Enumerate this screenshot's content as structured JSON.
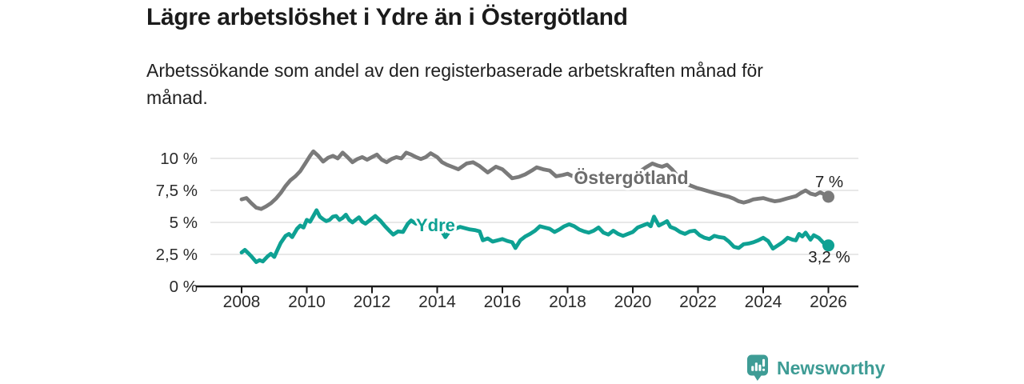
{
  "header": {
    "title": "Lägre arbetslöshet i Ydre än i Östergötland",
    "subtitle": "Arbetssökande som andel av den registerbaserade arbetskraften månad för månad."
  },
  "branding": {
    "name": "Newsworthy",
    "icon": "newsworthy-bar-chart-speech-bubble-icon",
    "color": "#3E9C95"
  },
  "colors": {
    "background": "#ffffff",
    "title_text": "#1b1b1b",
    "body_text": "#212121",
    "axis_text": "#2b2b2b",
    "gridline": "#d9d9d9",
    "axis_line": "#1a1a1a",
    "end_label_text": "#1f1f1f"
  },
  "chart_data": {
    "type": "line",
    "title": "Lägre arbetslöshet i Ydre än i Österg��tland",
    "subtitle": "Arbetssökande som andel av den registerbaserade arbetskraften månad för månad.",
    "unit": "%",
    "grid": "horizontal-only",
    "legend_position": "inline-labels-on-lines",
    "x_axis": {
      "range_years": [
        2007.05,
        2026.95
      ],
      "ticks": [
        {
          "value": 2008,
          "label": "2008"
        },
        {
          "value": 2010,
          "label": "2010"
        },
        {
          "value": 2012,
          "label": "2012"
        },
        {
          "value": 2014,
          "label": "2014"
        },
        {
          "value": 2016,
          "label": "2016"
        },
        {
          "value": 2018,
          "label": "2018"
        },
        {
          "value": 2020,
          "label": "2020"
        },
        {
          "value": 2022,
          "label": "2022"
        },
        {
          "value": 2024,
          "label": "2024"
        },
        {
          "value": 2026,
          "label": "2026"
        }
      ]
    },
    "y_axis": {
      "range": [
        0,
        11.2
      ],
      "ticks": [
        {
          "value": 0,
          "label": "0 %"
        },
        {
          "value": 2.5,
          "label": "2,5 %"
        },
        {
          "value": 5,
          "label": "5 %"
        },
        {
          "value": 7.5,
          "label": "7,5 %"
        },
        {
          "value": 10,
          "label": "10 %"
        }
      ]
    },
    "series": [
      {
        "name": "Östergötland",
        "color": "#7a7a7a",
        "label_color": "#6c6c6c",
        "label_size": 23,
        "label_anchor": {
          "x": 2019.95,
          "y": 8.5
        },
        "end_value": 7.0,
        "end_label": "7 %",
        "end_label_position": "above",
        "points": [
          [
            2008.0,
            6.8
          ],
          [
            2008.15,
            6.9
          ],
          [
            2008.3,
            6.5
          ],
          [
            2008.45,
            6.15
          ],
          [
            2008.6,
            6.05
          ],
          [
            2008.75,
            6.25
          ],
          [
            2008.9,
            6.5
          ],
          [
            2009.05,
            6.85
          ],
          [
            2009.2,
            7.3
          ],
          [
            2009.35,
            7.85
          ],
          [
            2009.5,
            8.3
          ],
          [
            2009.65,
            8.6
          ],
          [
            2009.8,
            9.0
          ],
          [
            2009.95,
            9.6
          ],
          [
            2010.1,
            10.2
          ],
          [
            2010.2,
            10.55
          ],
          [
            2010.35,
            10.2
          ],
          [
            2010.5,
            9.75
          ],
          [
            2010.65,
            10.05
          ],
          [
            2010.8,
            10.2
          ],
          [
            2010.95,
            10.0
          ],
          [
            2011.1,
            10.45
          ],
          [
            2011.25,
            10.1
          ],
          [
            2011.4,
            9.7
          ],
          [
            2011.55,
            9.95
          ],
          [
            2011.7,
            10.1
          ],
          [
            2011.85,
            9.9
          ],
          [
            2012.0,
            10.1
          ],
          [
            2012.15,
            10.3
          ],
          [
            2012.3,
            9.9
          ],
          [
            2012.45,
            9.7
          ],
          [
            2012.6,
            9.95
          ],
          [
            2012.75,
            10.1
          ],
          [
            2012.9,
            10.0
          ],
          [
            2013.05,
            10.45
          ],
          [
            2013.2,
            10.3
          ],
          [
            2013.35,
            10.1
          ],
          [
            2013.5,
            9.95
          ],
          [
            2013.65,
            10.1
          ],
          [
            2013.8,
            10.4
          ],
          [
            2014.0,
            10.1
          ],
          [
            2014.15,
            9.7
          ],
          [
            2014.3,
            9.5
          ],
          [
            2014.5,
            9.3
          ],
          [
            2014.65,
            9.15
          ],
          [
            2014.9,
            9.6
          ],
          [
            2015.1,
            9.7
          ],
          [
            2015.3,
            9.4
          ],
          [
            2015.55,
            8.9
          ],
          [
            2015.8,
            9.35
          ],
          [
            2016.0,
            9.15
          ],
          [
            2016.15,
            8.8
          ],
          [
            2016.3,
            8.45
          ],
          [
            2016.5,
            8.55
          ],
          [
            2016.7,
            8.75
          ],
          [
            2016.9,
            9.05
          ],
          [
            2017.05,
            9.3
          ],
          [
            2017.25,
            9.15
          ],
          [
            2017.45,
            9.05
          ],
          [
            2017.65,
            8.6
          ],
          [
            2017.85,
            8.7
          ],
          [
            2018.0,
            8.8
          ],
          [
            2018.2,
            8.55
          ],
          [
            2018.4,
            8.45
          ],
          [
            2018.6,
            8.35
          ],
          [
            2018.8,
            8.45
          ],
          [
            2019.0,
            8.55
          ],
          [
            2019.2,
            8.35
          ],
          [
            2019.4,
            8.25
          ],
          [
            2019.6,
            8.4
          ],
          [
            2019.8,
            8.5
          ],
          [
            2020.0,
            8.6
          ],
          [
            2020.2,
            8.95
          ],
          [
            2020.4,
            9.3
          ],
          [
            2020.6,
            9.6
          ],
          [
            2020.75,
            9.45
          ],
          [
            2020.9,
            9.35
          ],
          [
            2021.05,
            9.5
          ],
          [
            2021.2,
            9.15
          ],
          [
            2021.35,
            8.7
          ],
          [
            2021.5,
            8.35
          ],
          [
            2021.65,
            8.0
          ],
          [
            2021.8,
            7.85
          ],
          [
            2021.95,
            7.7
          ],
          [
            2022.1,
            7.6
          ],
          [
            2022.3,
            7.45
          ],
          [
            2022.5,
            7.3
          ],
          [
            2022.65,
            7.2
          ],
          [
            2022.8,
            7.1
          ],
          [
            2022.95,
            7.0
          ],
          [
            2023.1,
            6.85
          ],
          [
            2023.25,
            6.65
          ],
          [
            2023.4,
            6.55
          ],
          [
            2023.55,
            6.65
          ],
          [
            2023.7,
            6.8
          ],
          [
            2023.85,
            6.85
          ],
          [
            2024.0,
            6.9
          ],
          [
            2024.2,
            6.75
          ],
          [
            2024.35,
            6.65
          ],
          [
            2024.5,
            6.7
          ],
          [
            2024.7,
            6.85
          ],
          [
            2024.85,
            6.95
          ],
          [
            2025.0,
            7.05
          ],
          [
            2025.15,
            7.3
          ],
          [
            2025.3,
            7.5
          ],
          [
            2025.45,
            7.25
          ],
          [
            2025.6,
            7.15
          ],
          [
            2025.75,
            7.35
          ],
          [
            2025.9,
            7.15
          ],
          [
            2026.0,
            7.0
          ]
        ]
      },
      {
        "name": "Ydre",
        "color": "#0EA193",
        "label_color": "#0EA193",
        "label_size": 22,
        "label_anchor": {
          "x": 2013.95,
          "y": 4.8
        },
        "end_value": 3.2,
        "end_label": "3,2 %",
        "end_label_position": "below",
        "points": [
          [
            2008.0,
            2.65
          ],
          [
            2008.1,
            2.85
          ],
          [
            2008.2,
            2.6
          ],
          [
            2008.3,
            2.35
          ],
          [
            2008.45,
            1.9
          ],
          [
            2008.55,
            2.05
          ],
          [
            2008.65,
            1.95
          ],
          [
            2008.8,
            2.35
          ],
          [
            2008.9,
            2.55
          ],
          [
            2009.0,
            2.3
          ],
          [
            2009.1,
            2.85
          ],
          [
            2009.2,
            3.4
          ],
          [
            2009.35,
            3.95
          ],
          [
            2009.45,
            4.1
          ],
          [
            2009.55,
            3.85
          ],
          [
            2009.7,
            4.5
          ],
          [
            2009.8,
            4.75
          ],
          [
            2009.9,
            4.6
          ],
          [
            2010.0,
            5.2
          ],
          [
            2010.1,
            5.05
          ],
          [
            2010.2,
            5.5
          ],
          [
            2010.3,
            5.95
          ],
          [
            2010.4,
            5.45
          ],
          [
            2010.5,
            5.25
          ],
          [
            2010.6,
            5.1
          ],
          [
            2010.7,
            5.2
          ],
          [
            2010.8,
            5.45
          ],
          [
            2010.9,
            5.5
          ],
          [
            2011.0,
            5.2
          ],
          [
            2011.1,
            5.35
          ],
          [
            2011.2,
            5.6
          ],
          [
            2011.3,
            5.2
          ],
          [
            2011.4,
            5.0
          ],
          [
            2011.5,
            5.2
          ],
          [
            2011.6,
            5.4
          ],
          [
            2011.7,
            5.05
          ],
          [
            2011.8,
            4.9
          ],
          [
            2011.9,
            5.1
          ],
          [
            2012.0,
            5.3
          ],
          [
            2012.1,
            5.5
          ],
          [
            2012.25,
            5.15
          ],
          [
            2012.4,
            4.7
          ],
          [
            2012.55,
            4.3
          ],
          [
            2012.65,
            4.05
          ],
          [
            2012.8,
            4.3
          ],
          [
            2012.95,
            4.25
          ],
          [
            2013.1,
            4.9
          ],
          [
            2013.2,
            5.15
          ],
          [
            2013.35,
            4.9
          ],
          [
            2013.5,
            5.0
          ],
          [
            2013.65,
            4.8
          ],
          [
            2013.8,
            4.85
          ],
          [
            2013.95,
            4.7
          ],
          [
            2014.1,
            4.5
          ],
          [
            2014.25,
            3.85
          ],
          [
            2014.4,
            4.4
          ],
          [
            2014.55,
            4.5
          ],
          [
            2014.7,
            4.65
          ],
          [
            2014.85,
            4.55
          ],
          [
            2015.0,
            4.45
          ],
          [
            2015.15,
            4.4
          ],
          [
            2015.3,
            4.3
          ],
          [
            2015.4,
            3.6
          ],
          [
            2015.55,
            3.75
          ],
          [
            2015.7,
            3.5
          ],
          [
            2015.85,
            3.6
          ],
          [
            2016.0,
            3.7
          ],
          [
            2016.15,
            3.55
          ],
          [
            2016.3,
            3.45
          ],
          [
            2016.4,
            3.0
          ],
          [
            2016.55,
            3.6
          ],
          [
            2016.7,
            3.9
          ],
          [
            2016.85,
            4.1
          ],
          [
            2017.0,
            4.35
          ],
          [
            2017.15,
            4.7
          ],
          [
            2017.3,
            4.6
          ],
          [
            2017.45,
            4.5
          ],
          [
            2017.6,
            4.25
          ],
          [
            2017.75,
            4.45
          ],
          [
            2017.9,
            4.7
          ],
          [
            2018.05,
            4.85
          ],
          [
            2018.2,
            4.7
          ],
          [
            2018.35,
            4.45
          ],
          [
            2018.5,
            4.3
          ],
          [
            2018.65,
            4.2
          ],
          [
            2018.8,
            4.35
          ],
          [
            2018.95,
            4.6
          ],
          [
            2019.1,
            4.2
          ],
          [
            2019.25,
            4.05
          ],
          [
            2019.4,
            4.35
          ],
          [
            2019.55,
            4.1
          ],
          [
            2019.7,
            3.95
          ],
          [
            2019.85,
            4.1
          ],
          [
            2020.0,
            4.25
          ],
          [
            2020.15,
            4.6
          ],
          [
            2020.3,
            4.75
          ],
          [
            2020.45,
            4.9
          ],
          [
            2020.55,
            4.7
          ],
          [
            2020.65,
            5.45
          ],
          [
            2020.8,
            4.75
          ],
          [
            2020.95,
            4.95
          ],
          [
            2021.05,
            5.1
          ],
          [
            2021.15,
            4.65
          ],
          [
            2021.3,
            4.5
          ],
          [
            2021.45,
            4.25
          ],
          [
            2021.6,
            4.1
          ],
          [
            2021.75,
            4.3
          ],
          [
            2021.9,
            4.35
          ],
          [
            2022.05,
            4.0
          ],
          [
            2022.2,
            3.8
          ],
          [
            2022.35,
            3.7
          ],
          [
            2022.5,
            3.95
          ],
          [
            2022.65,
            3.85
          ],
          [
            2022.8,
            3.8
          ],
          [
            2022.95,
            3.5
          ],
          [
            2023.1,
            3.1
          ],
          [
            2023.25,
            3.0
          ],
          [
            2023.4,
            3.3
          ],
          [
            2023.55,
            3.35
          ],
          [
            2023.7,
            3.45
          ],
          [
            2023.85,
            3.6
          ],
          [
            2024.0,
            3.8
          ],
          [
            2024.15,
            3.55
          ],
          [
            2024.3,
            2.95
          ],
          [
            2024.45,
            3.2
          ],
          [
            2024.6,
            3.45
          ],
          [
            2024.75,
            3.8
          ],
          [
            2024.9,
            3.65
          ],
          [
            2025.0,
            3.6
          ],
          [
            2025.1,
            4.1
          ],
          [
            2025.2,
            3.9
          ],
          [
            2025.3,
            4.2
          ],
          [
            2025.45,
            3.65
          ],
          [
            2025.55,
            4.0
          ],
          [
            2025.7,
            3.8
          ],
          [
            2025.85,
            3.4
          ],
          [
            2026.0,
            3.2
          ]
        ]
      }
    ]
  }
}
